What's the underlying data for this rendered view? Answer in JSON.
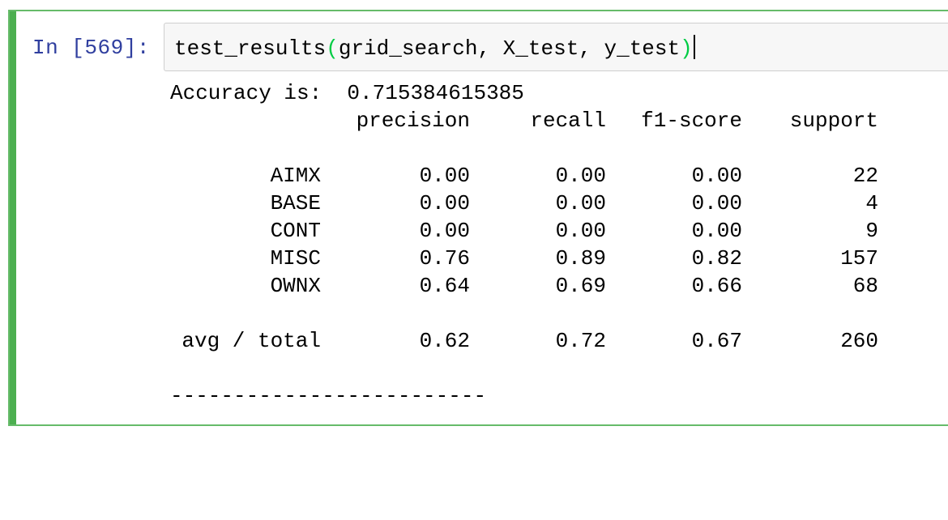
{
  "cell": {
    "prompt": "In [569]:",
    "code": {
      "func": "test_results",
      "open_paren": "(",
      "args": "grid_search, X_test, y_test",
      "close_paren": ")"
    }
  },
  "output": {
    "accuracy_line": "Accuracy is:  0.715384615385",
    "headers": [
      "precision",
      "recall",
      "f1-score",
      "support"
    ],
    "rows": [
      {
        "label": "AIMX",
        "precision": "0.00",
        "recall": "0.00",
        "f1": "0.00",
        "support": "22"
      },
      {
        "label": "BASE",
        "precision": "0.00",
        "recall": "0.00",
        "f1": "0.00",
        "support": "4"
      },
      {
        "label": "CONT",
        "precision": "0.00",
        "recall": "0.00",
        "f1": "0.00",
        "support": "9"
      },
      {
        "label": "MISC",
        "precision": "0.76",
        "recall": "0.89",
        "f1": "0.82",
        "support": "157"
      },
      {
        "label": "OWNX",
        "precision": "0.64",
        "recall": "0.69",
        "f1": "0.66",
        "support": "68"
      }
    ],
    "total": {
      "label": "avg / total",
      "precision": "0.62",
      "recall": "0.72",
      "f1": "0.67",
      "support": "260"
    },
    "separator": "-------------------------"
  },
  "colors": {
    "cell_border": "#66bb6a",
    "prompt": "#303f9f",
    "paren_match": "#00cc44"
  }
}
